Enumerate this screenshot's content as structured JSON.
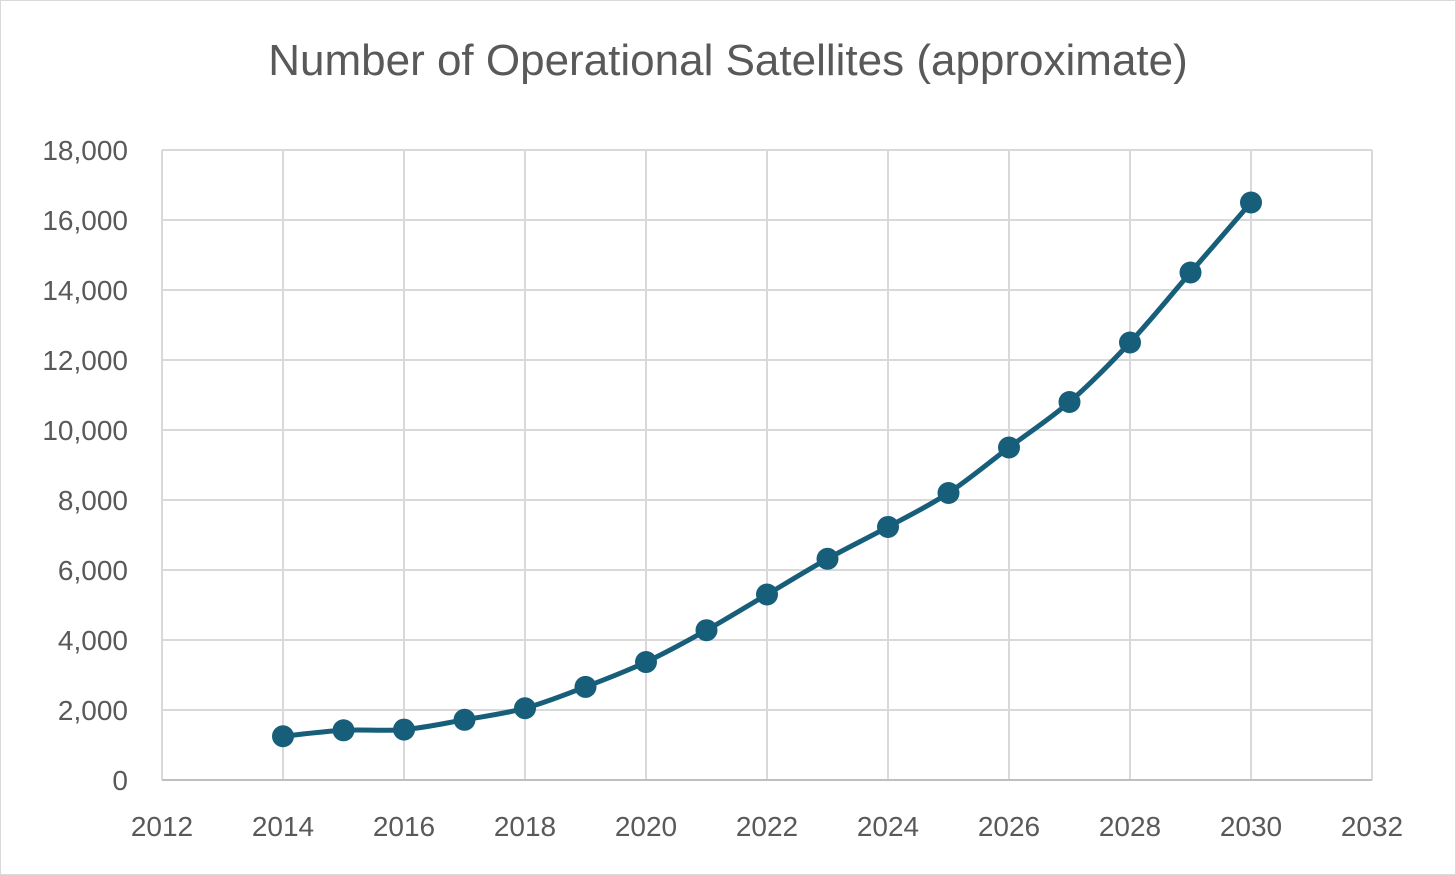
{
  "chart_data": {
    "type": "scatter",
    "title": "Number of Operational Satellites (approximate)",
    "xlabel": "",
    "ylabel": "",
    "xlim": [
      2012,
      2032
    ],
    "ylim": [
      0,
      18000
    ],
    "x_ticks": [
      "2012",
      "2014",
      "2016",
      "2018",
      "2020",
      "2022",
      "2024",
      "2026",
      "2028",
      "2030",
      "2032"
    ],
    "y_ticks": [
      "0",
      "2,000",
      "4,000",
      "6,000",
      "8,000",
      "10,000",
      "12,000",
      "14,000",
      "16,000",
      "18,000"
    ],
    "grid": true,
    "legend": "none",
    "line_style": "smooth",
    "series": [
      {
        "color": "#175e7a",
        "x": [
          2014,
          2015,
          2016,
          2017,
          2018,
          2019,
          2020,
          2021,
          2022,
          2023,
          2024,
          2025,
          2026,
          2027,
          2028,
          2029,
          2030
        ],
        "y": [
          1250,
          1420,
          1440,
          1720,
          2050,
          2660,
          3370,
          4280,
          5300,
          6320,
          7230,
          8200,
          9500,
          10800,
          12500,
          14500,
          16500
        ]
      }
    ]
  }
}
